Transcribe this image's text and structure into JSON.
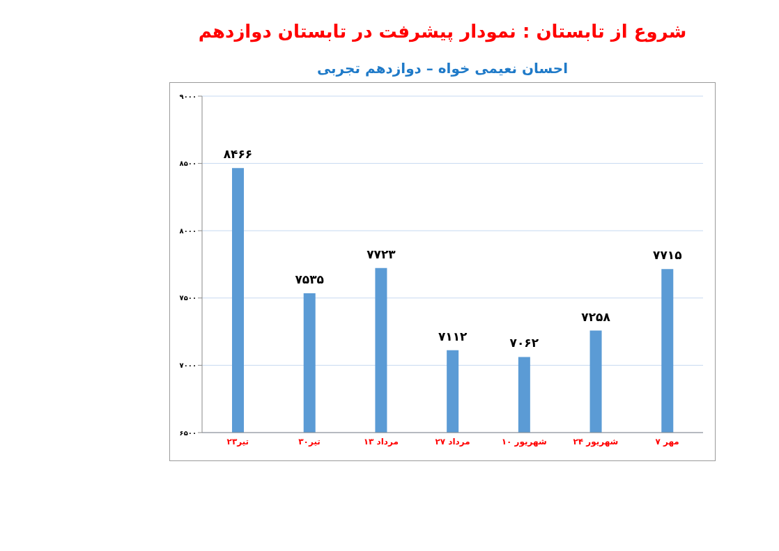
{
  "chart_data": {
    "type": "bar",
    "title": "شروع از تابستان : نمودار پیشرفت در تابستان دوازدهم",
    "subtitle": "احسان نعیمی خواه – دوازدهم تجربی",
    "categories": [
      "۲۳تیر",
      "۳۰تیر",
      "۱۳ مرداد",
      "۲۷ مرداد",
      "۱۰ شهریور",
      "۲۴ شهریور",
      "۷ مهر"
    ],
    "values": [
      8466,
      7535,
      7723,
      7112,
      7062,
      7258,
      7715
    ],
    "value_labels": [
      "۸۴۶۶",
      "۷۵۳۵",
      "۷۷۲۳",
      "۷۱۱۲",
      "۷۰۶۲",
      "۷۲۵۸",
      "۷۷۱۵"
    ],
    "color": "#5b9bd5",
    "ylim": [
      6500,
      9000
    ],
    "yticks": [
      {
        "value": 6500,
        "label": "۶۵۰۰"
      },
      {
        "value": 7000,
        "label": "۷۰۰۰"
      },
      {
        "value": 7500,
        "label": "۷۵۰۰"
      },
      {
        "value": 8000,
        "label": "۸۰۰۰"
      },
      {
        "value": 8500,
        "label": "۸۵۰۰"
      },
      {
        "value": 9000,
        "label": "۹۰۰۰"
      }
    ],
    "grid": "y"
  }
}
